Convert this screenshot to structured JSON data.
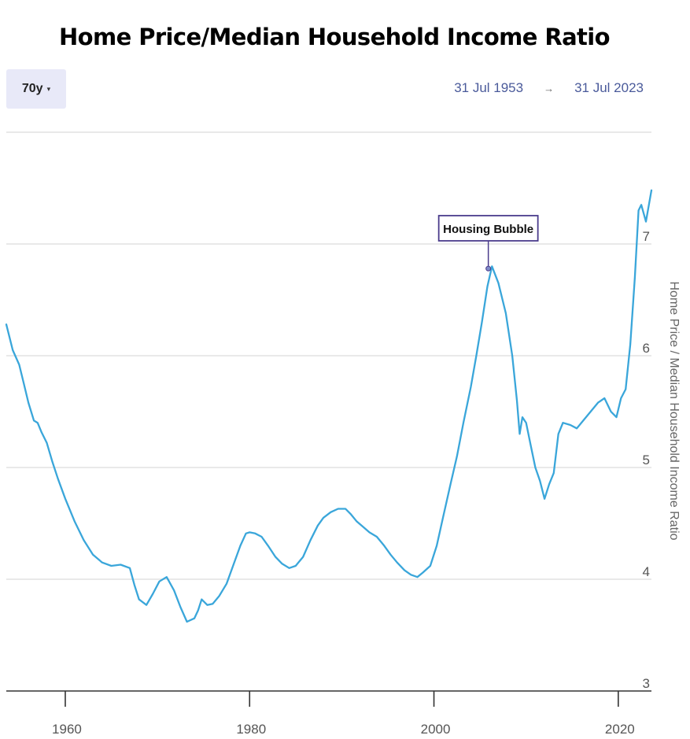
{
  "header": {
    "range_button": {
      "label": "70y",
      "caret": "▾"
    },
    "start_date": "31 Jul 1953",
    "arrow": "→",
    "end_date": "31 Jul 2023"
  },
  "chart_data": {
    "type": "line",
    "title": "Home Price/Median Household Income Ratio",
    "xlabel": "",
    "ylabel": "Home Price / Median Household Income Ratio",
    "xlim": [
      1953.6,
      2023.6
    ],
    "ylim": [
      3,
      8
    ],
    "x_ticks": [
      1960,
      1980,
      2000,
      2020
    ],
    "y_ticks": [
      3,
      4,
      5,
      6,
      7
    ],
    "grid": true,
    "line_color": "#3aa6da",
    "annotations": [
      {
        "text": "Housing Bubble",
        "x": 2005.9,
        "y": 6.78
      }
    ],
    "series": [
      {
        "x": [
          1953.6,
          1954.3,
          1955.0,
          1955.5,
          1956.0,
          1956.6,
          1957.0,
          1957.4,
          1958.0,
          1958.6,
          1959.2,
          1960.0,
          1961.0,
          1962.0,
          1963.0,
          1964.0,
          1965.0,
          1966.0,
          1967.0,
          1967.5,
          1968.0,
          1968.8,
          1969.5,
          1970.2,
          1971.0,
          1971.8,
          1972.5,
          1973.2,
          1974.0,
          1974.4,
          1974.8,
          1975.4,
          1976.0,
          1976.7,
          1977.5,
          1978.2,
          1979.0,
          1979.6,
          1980.0,
          1980.6,
          1981.3,
          1982.0,
          1982.8,
          1983.5,
          1984.3,
          1985.0,
          1985.8,
          1986.6,
          1987.4,
          1988.0,
          1988.8,
          1989.6,
          1990.4,
          1991.0,
          1991.6,
          1992.3,
          1993.0,
          1993.8,
          1994.6,
          1995.3,
          1996.0,
          1996.8,
          1997.5,
          1998.2,
          1998.8,
          1999.6,
          2000.3,
          2001.0,
          2001.8,
          2002.5,
          2003.2,
          2004.0,
          2004.6,
          2005.2,
          2005.8,
          2006.3,
          2007.0,
          2007.8,
          2008.5,
          2009.0,
          2009.3,
          2009.6,
          2010.0,
          2010.5,
          2011.0,
          2011.5,
          2012.0,
          2012.5,
          2013.0,
          2013.5,
          2014.0,
          2014.8,
          2015.5,
          2016.2,
          2017.0,
          2017.8,
          2018.5,
          2019.2,
          2019.8,
          2020.3,
          2020.8,
          2021.3,
          2021.8,
          2022.2,
          2022.5,
          2023.0,
          2023.6
        ],
        "y": [
          6.28,
          6.05,
          5.92,
          5.75,
          5.58,
          5.42,
          5.4,
          5.32,
          5.22,
          5.05,
          4.9,
          4.72,
          4.52,
          4.35,
          4.22,
          4.15,
          4.12,
          4.13,
          4.1,
          3.95,
          3.82,
          3.77,
          3.87,
          3.98,
          4.02,
          3.9,
          3.75,
          3.62,
          3.65,
          3.72,
          3.82,
          3.77,
          3.78,
          3.85,
          3.96,
          4.12,
          4.3,
          4.41,
          4.42,
          4.41,
          4.38,
          4.3,
          4.2,
          4.14,
          4.1,
          4.12,
          4.2,
          4.35,
          4.48,
          4.55,
          4.6,
          4.63,
          4.63,
          4.58,
          4.52,
          4.47,
          4.42,
          4.38,
          4.3,
          4.22,
          4.15,
          4.08,
          4.04,
          4.02,
          4.06,
          4.12,
          4.3,
          4.56,
          4.85,
          5.1,
          5.4,
          5.72,
          6.0,
          6.3,
          6.62,
          6.8,
          6.65,
          6.38,
          6.0,
          5.6,
          5.3,
          5.45,
          5.4,
          5.2,
          5.0,
          4.88,
          4.72,
          4.85,
          4.95,
          5.3,
          5.4,
          5.38,
          5.35,
          5.42,
          5.5,
          5.58,
          5.62,
          5.5,
          5.45,
          5.62,
          5.7,
          6.1,
          6.7,
          7.3,
          7.35,
          7.2,
          7.48
        ]
      }
    ]
  }
}
